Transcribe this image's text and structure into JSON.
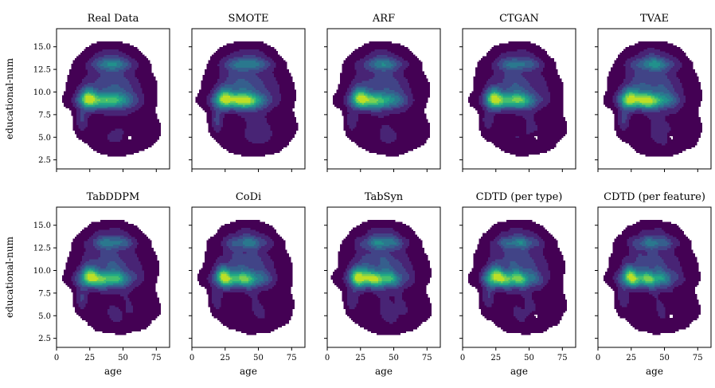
{
  "chart_data": {
    "type": "kde-contour-grid",
    "xlabel": "age",
    "ylabel": "educational-num",
    "xlim": [
      0,
      85
    ],
    "ylim": [
      1.5,
      17
    ],
    "xticks": [
      0,
      25,
      50,
      75
    ],
    "yticks": [
      2.5,
      5.0,
      7.5,
      10.0,
      12.5,
      15.0
    ],
    "xtick_labels": [
      "0",
      "25",
      "50",
      "75"
    ],
    "ytick_labels": [
      "2.5",
      "5.0",
      "7.5",
      "10.0",
      "12.5",
      "15.0"
    ],
    "colormap": "viridis",
    "panels": [
      {
        "title": "Real Data",
        "hole": true
      },
      {
        "title": "SMOTE",
        "hole": false
      },
      {
        "title": "ARF",
        "hole": false
      },
      {
        "title": "CTGAN",
        "hole": true
      },
      {
        "title": "TVAE",
        "hole": true
      },
      {
        "title": "TabDDPM",
        "hole": false
      },
      {
        "title": "CoDi",
        "hole": false
      },
      {
        "title": "TabSyn",
        "hole": false
      },
      {
        "title": "CDTD (per type)",
        "hole": true
      },
      {
        "title": "CDTD (per feature)",
        "hole": true
      }
    ]
  },
  "colors": {
    "viridis": [
      "#440154",
      "#482475",
      "#414487",
      "#355f8d",
      "#2a788e",
      "#21918c",
      "#22a884",
      "#44bf70",
      "#7ad151",
      "#bddf26",
      "#fde725"
    ]
  }
}
